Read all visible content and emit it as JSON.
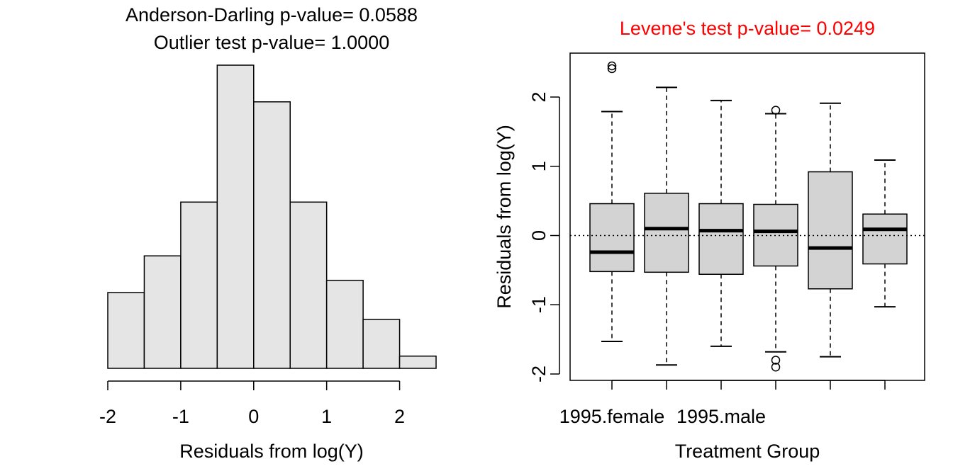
{
  "chart_data": [
    {
      "type": "histogram",
      "title_lines": [
        "Anderson-Darling p-value= 0.0588",
        "Outlier test p-value= 1.0000"
      ],
      "xlabel": "Residuals from log(Y)",
      "ylabel": "",
      "xlim": [
        -2,
        2.5
      ],
      "x_ticks": [
        -2,
        -1,
        0,
        1,
        2
      ],
      "x_tick_labels": [
        "-2",
        "-1",
        "0",
        "1",
        "2"
      ],
      "bin_edges": [
        -2,
        -1.5,
        -1,
        -0.5,
        0,
        0.5,
        1,
        1.5,
        2,
        2.5
      ],
      "values": [
        0.155,
        0.23,
        0.34,
        0.62,
        0.545,
        0.34,
        0.18,
        0.1,
        0.025
      ],
      "ylim": [
        0,
        0.62
      ],
      "bar_fill": "#e5e5e5",
      "bar_stroke": "#000000"
    },
    {
      "type": "boxplot",
      "title": "Levene's test p-value= 0.0249",
      "title_color": "#ff0000",
      "xlabel": "Treatment Group",
      "ylabel": "Residuals from log(Y)",
      "ylim": [
        -2,
        2.5
      ],
      "y_ticks": [
        -2,
        -1,
        0,
        1,
        2
      ],
      "y_tick_labels": [
        "-2",
        "-1",
        "0",
        "1",
        "2"
      ],
      "x_tick_labels": [
        "1995.female",
        "",
        "1995.male",
        "",
        "",
        ""
      ],
      "reference_line": 0,
      "box_fill": "#d3d3d3",
      "groups": [
        {
          "min": -1.53,
          "q1": -0.52,
          "median": -0.24,
          "q3": 0.46,
          "max": 1.79,
          "outliers": [
            2.41,
            2.45
          ]
        },
        {
          "min": -1.87,
          "q1": -0.53,
          "median": 0.1,
          "q3": 0.61,
          "max": 2.14,
          "outliers": []
        },
        {
          "min": -1.6,
          "q1": -0.56,
          "median": 0.07,
          "q3": 0.46,
          "max": 1.95,
          "outliers": []
        },
        {
          "min": -1.68,
          "q1": -0.44,
          "median": 0.06,
          "q3": 0.45,
          "max": 1.76,
          "outliers": [
            1.81,
            -1.8,
            -1.9
          ]
        },
        {
          "min": -1.75,
          "q1": -0.77,
          "median": -0.18,
          "q3": 0.92,
          "max": 1.91,
          "outliers": []
        },
        {
          "min": -1.03,
          "q1": -0.41,
          "median": 0.09,
          "q3": 0.31,
          "max": 1.09,
          "outliers": []
        }
      ]
    }
  ]
}
